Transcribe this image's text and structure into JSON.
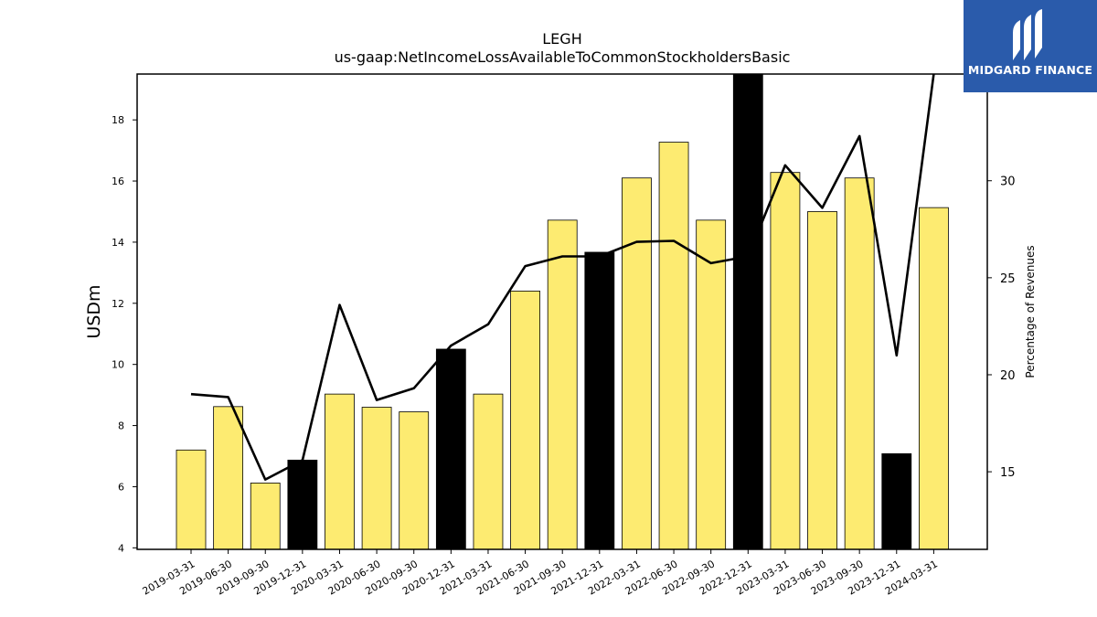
{
  "chart_data": {
    "type": "bar",
    "title": "LEGH",
    "subtitle": "us-gaap:NetIncomeLossAvailableToCommonStockholdersBasic",
    "ylabel": "USDm",
    "y2label": "Percentage of Revenues",
    "ylim": [
      3.95,
      19.5
    ],
    "y2lim": [
      11.0,
      35.5
    ],
    "yticks": [
      4,
      6,
      8,
      10,
      12,
      14,
      16,
      18
    ],
    "y2ticks": [
      15,
      20,
      25,
      30
    ],
    "categories": [
      "2019-03-31",
      "2019-06-30",
      "2019-09-30",
      "2019-12-31",
      "2020-03-31",
      "2020-06-30",
      "2020-09-30",
      "2020-12-31",
      "2021-03-31",
      "2021-06-30",
      "2021-09-30",
      "2021-12-31",
      "2022-03-31",
      "2022-06-30",
      "2022-09-30",
      "2022-12-31",
      "2023-03-31",
      "2023-06-30",
      "2023-09-30",
      "2023-12-31",
      "2024-03-31"
    ],
    "series": [
      {
        "kind": "bar",
        "values": [
          7.2,
          8.62,
          6.12,
          6.87,
          9.03,
          8.6,
          8.45,
          10.5,
          9.03,
          12.4,
          14.72,
          13.67,
          16.1,
          17.27,
          14.72,
          19.7,
          16.28,
          15.0,
          16.1,
          7.08,
          15.13
        ],
        "highlight": [
          false,
          false,
          false,
          true,
          false,
          false,
          false,
          true,
          false,
          false,
          false,
          true,
          false,
          false,
          false,
          true,
          false,
          false,
          false,
          true,
          false
        ]
      },
      {
        "kind": "line",
        "axis": "right",
        "values": [
          19.0,
          18.85,
          14.6,
          15.6,
          23.6,
          18.7,
          19.3,
          21.5,
          22.6,
          25.6,
          26.1,
          26.1,
          26.85,
          26.9,
          25.75,
          26.1,
          30.8,
          28.6,
          32.3,
          21.0,
          35.5
        ]
      }
    ],
    "colors": {
      "bar": "#fdeb71",
      "bar_highlight": "#000000",
      "line": "#000000"
    },
    "grid": false,
    "legend": "none"
  },
  "logo": {
    "text": "MIDGARD FINANCE",
    "icon": "midgard-logo-icon",
    "bg": "#2a5bab"
  }
}
